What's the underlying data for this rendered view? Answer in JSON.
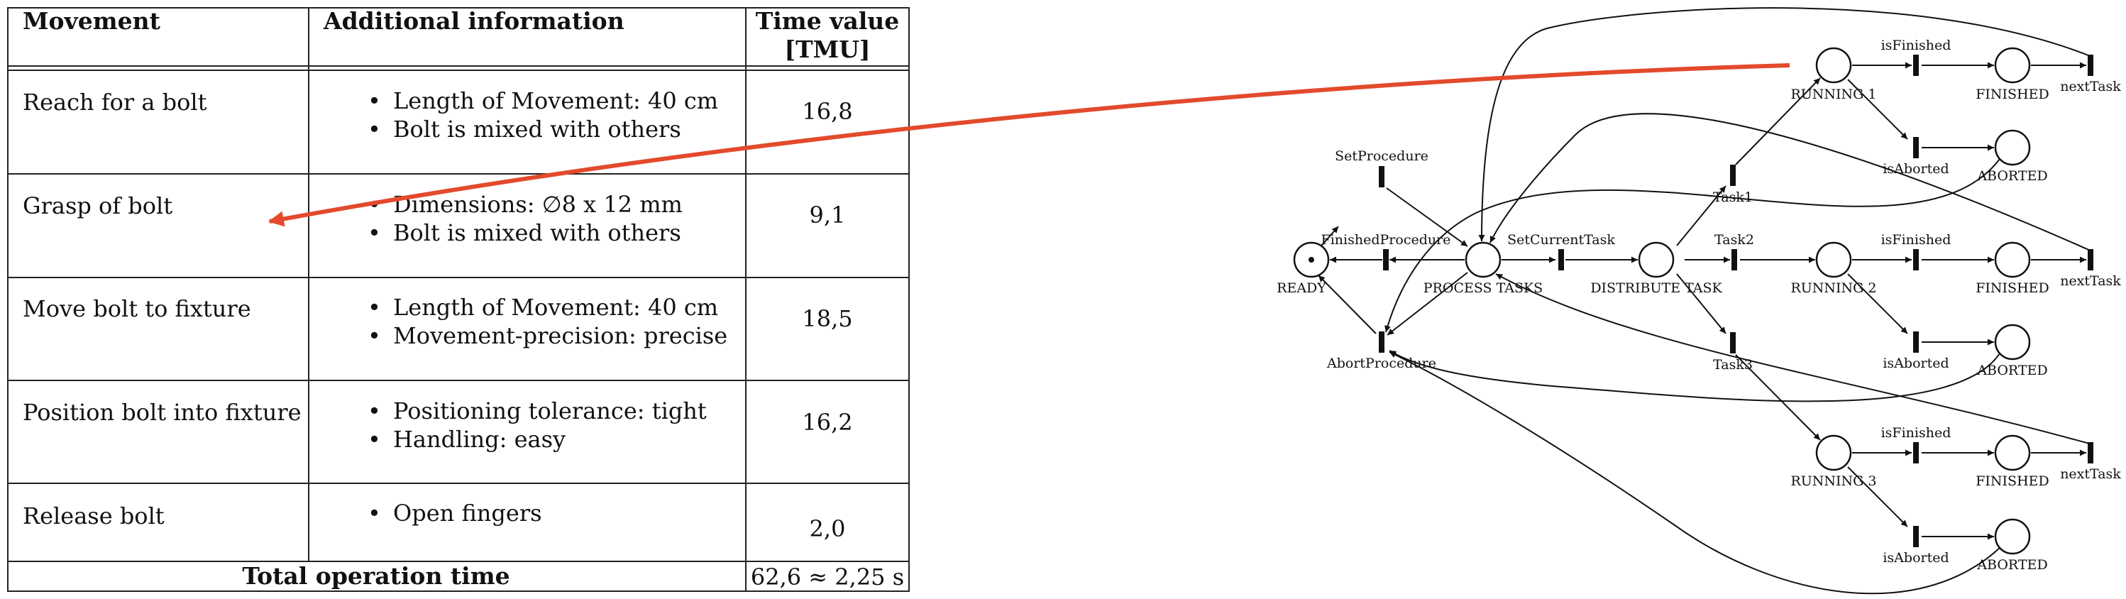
{
  "table": {
    "headers": {
      "movement": "Movement",
      "info": "Additional information",
      "time_line1": "Time value",
      "time_line2": "[TMU]"
    },
    "rows": [
      {
        "movement": "Reach for a bolt",
        "info": [
          "Length of Movement: 40 cm",
          "Bolt is mixed with others"
        ],
        "time": "16,8"
      },
      {
        "movement": "Grasp of bolt",
        "info": [
          "Dimensions: ∅8 x 12 mm",
          "Bolt is mixed with others"
        ],
        "time": "9,1"
      },
      {
        "movement": "Move bolt to fixture",
        "info": [
          "Length of Movement: 40 cm",
          "Movement-precision: precise"
        ],
        "time": "18,5"
      },
      {
        "movement": "Position bolt into fixture",
        "info": [
          "Positioning tolerance: tight",
          "Handling: easy"
        ],
        "time": "16,2"
      },
      {
        "movement": "Release bolt",
        "info": [
          "Open fingers"
        ],
        "time": "2,0"
      }
    ],
    "total_label": "Total operation time",
    "total_value": "62,6 ≈ 2,25 s"
  },
  "petri_net": {
    "places": {
      "ready": "READY",
      "process": "PROCESS TASKS",
      "distribute": "DISTRIBUTE TASK",
      "running1": "RUNNING 1",
      "running2": "RUNNING 2",
      "running3": "RUNNING 3",
      "finished1": "FINISHED",
      "finished2": "FINISHED",
      "finished3": "FINISHED",
      "aborted1": "ABORTED",
      "aborted2": "ABORTED",
      "aborted3": "ABORTED"
    },
    "transitions": {
      "set_procedure": "SetProcedure",
      "finished_procedure": "FinishedProcedure",
      "abort_procedure": "AbortProcedure",
      "set_current_task": "SetCurrentTask",
      "task1": "Task1",
      "task2": "Task2",
      "task3": "Task3",
      "is_finished1": "isFinished",
      "is_finished2": "isFinished",
      "is_finished3": "isFinished",
      "is_aborted1": "isAborted",
      "is_aborted2": "isAborted",
      "is_aborted3": "isAborted",
      "next_task1": "nextTask",
      "next_task2": "nextTask",
      "next_task3": "nextTask"
    }
  },
  "colors": {
    "highlight_arrow": "#e34a2c"
  }
}
